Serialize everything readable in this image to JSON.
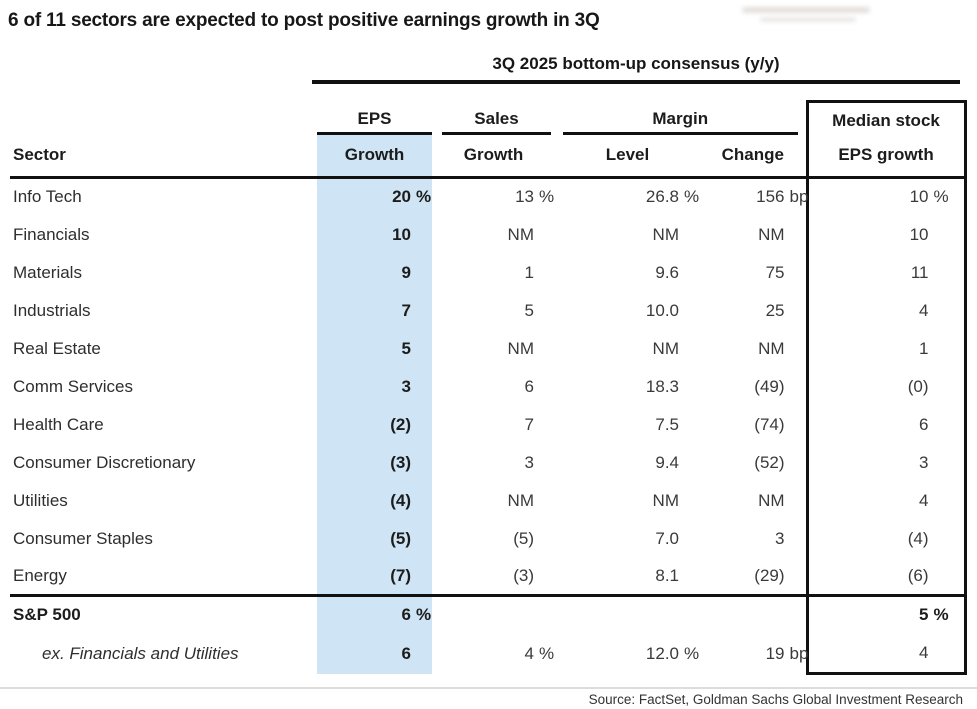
{
  "chart_data": {
    "type": "table",
    "title": "6 of 11 sectors are expected to post positive earnings growth in 3Q",
    "span_header": "3Q 2025 bottom-up consensus (y/y)",
    "headers": {
      "sector": "Sector",
      "eps_group": "EPS",
      "eps_sub": "Growth",
      "sales_group": "Sales",
      "sales_sub": "Growth",
      "margin_group": "Margin",
      "margin_level": "Level",
      "margin_change": "Change",
      "median_group": "Median stock",
      "median_sub": "EPS growth"
    },
    "rows": [
      {
        "sector": "Info Tech",
        "eps": "20",
        "eps_sfx": "%",
        "sales": "13",
        "sales_sfx": "%",
        "level": "26.8",
        "level_sfx": "%",
        "change": "156",
        "change_sfx": "bp",
        "median": "10",
        "median_sfx": "%"
      },
      {
        "sector": "Financials",
        "eps": "10",
        "sales": "NM",
        "level": "NM",
        "change": "NM",
        "median": "10"
      },
      {
        "sector": "Materials",
        "eps": "9",
        "sales": "1",
        "level": "9.6",
        "change": "75",
        "median": "11"
      },
      {
        "sector": "Industrials",
        "eps": "7",
        "sales": "5",
        "level": "10.0",
        "change": "25",
        "median": "4"
      },
      {
        "sector": "Real Estate",
        "eps": "5",
        "sales": "NM",
        "level": "NM",
        "change": "NM",
        "median": "1"
      },
      {
        "sector": "Comm Services",
        "eps": "3",
        "sales": "6",
        "level": "18.3",
        "change": "(49)",
        "median": "(0)"
      },
      {
        "sector": "Health Care",
        "eps": "(2)",
        "sales": "7",
        "level": "7.5",
        "change": "(74)",
        "median": "6"
      },
      {
        "sector": "Consumer Discretionary",
        "eps": "(3)",
        "sales": "3",
        "level": "9.4",
        "change": "(52)",
        "median": "3"
      },
      {
        "sector": "Utilities",
        "eps": "(4)",
        "sales": "NM",
        "level": "NM",
        "change": "NM",
        "median": "4"
      },
      {
        "sector": "Consumer Staples",
        "eps": "(5)",
        "sales": "(5)",
        "level": "7.0",
        "change": "3",
        "median": "(4)"
      },
      {
        "sector": "Energy",
        "eps": "(7)",
        "sales": "(3)",
        "level": "8.1",
        "change": "(29)",
        "median": "(6)"
      }
    ],
    "sp500_row": {
      "sector": "S&P 500",
      "eps": "6",
      "eps_sfx": "%",
      "median": "5",
      "median_sfx": "%"
    },
    "ex_row": {
      "sector": "ex. Financials and Utilities",
      "eps": "6",
      "sales": "4",
      "sales_sfx": "%",
      "level": "12.0",
      "level_sfx": "%",
      "change": "19",
      "change_sfx": "bp",
      "median": "4"
    },
    "source": "Source: FactSet, Goldman Sachs Global Investment Research",
    "colors": {
      "highlight_blue": "#cfe5f5",
      "rule_black": "#111111",
      "rule_light_gray": "#dcdcdc"
    }
  }
}
